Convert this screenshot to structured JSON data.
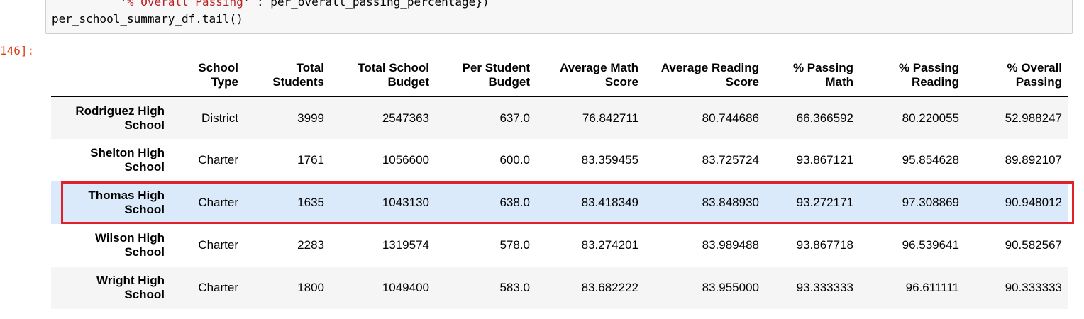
{
  "code": {
    "line1_str": "% Overall Passing",
    "line1_rest": ": per_overall_passing_percentage})",
    "line2": "per_school_summary_df.tail()"
  },
  "prompt": "146]:",
  "table": {
    "columns": [
      [
        "School",
        "Type"
      ],
      [
        "Total",
        "Students"
      ],
      [
        "Total School",
        "Budget"
      ],
      [
        "Per Student",
        "Budget"
      ],
      [
        "Average Math",
        "Score"
      ],
      [
        "Average Reading",
        "Score"
      ],
      [
        "% Passing",
        "Math"
      ],
      [
        "% Passing",
        "Reading"
      ],
      [
        "% Overall",
        "Passing"
      ]
    ],
    "rows": [
      {
        "index": [
          "Rodriguez High",
          "School"
        ],
        "values": [
          "District",
          "3999",
          "2547363",
          "637.0",
          "76.842711",
          "80.744686",
          "66.366592",
          "80.220055",
          "52.988247"
        ]
      },
      {
        "index": [
          "Shelton High",
          "School"
        ],
        "values": [
          "Charter",
          "1761",
          "1056600",
          "600.0",
          "83.359455",
          "83.725724",
          "93.867121",
          "95.854628",
          "89.892107"
        ]
      },
      {
        "index": [
          "Thomas High",
          "School"
        ],
        "values": [
          "Charter",
          "1635",
          "1043130",
          "638.0",
          "83.418349",
          "83.848930",
          "93.272171",
          "97.308869",
          "90.948012"
        ]
      },
      {
        "index": [
          "Wilson High",
          "School"
        ],
        "values": [
          "Charter",
          "2283",
          "1319574",
          "578.0",
          "83.274201",
          "83.989488",
          "93.867718",
          "96.539641",
          "90.582567"
        ]
      },
      {
        "index": [
          "Wright High",
          "School"
        ],
        "values": [
          "Charter",
          "1800",
          "1049400",
          "583.0",
          "83.682222",
          "83.955000",
          "93.333333",
          "96.611111",
          "90.333333"
        ]
      }
    ]
  },
  "colors": {
    "highlight_border": "#e0212a",
    "selected_row": "#dbeafa",
    "prompt": "#d84315"
  }
}
